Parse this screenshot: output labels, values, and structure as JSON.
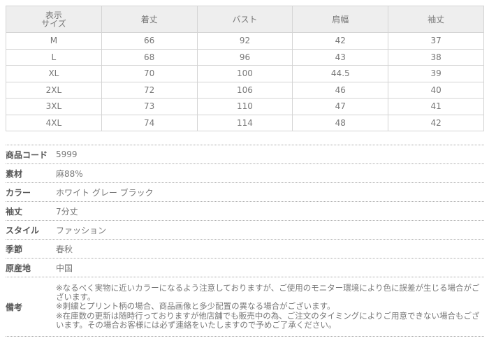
{
  "size_table": {
    "headers": [
      "表示\nサイズ",
      "着丈",
      "バスト",
      "肩幅",
      "袖丈"
    ],
    "rows": [
      [
        "M",
        "66",
        "92",
        "42",
        "37"
      ],
      [
        "L",
        "68",
        "96",
        "43",
        "38"
      ],
      [
        "XL",
        "70",
        "100",
        "44.5",
        "39"
      ],
      [
        "2XL",
        "72",
        "106",
        "46",
        "40"
      ],
      [
        "3XL",
        "73",
        "110",
        "47",
        "41"
      ],
      [
        "4XL",
        "74",
        "114",
        "48",
        "42"
      ]
    ]
  },
  "specs": [
    {
      "label": "商品コード",
      "value": "5999"
    },
    {
      "label": "素材",
      "value": "麻88%"
    },
    {
      "label": "カラー",
      "value": "ホワイト グレー ブラック"
    },
    {
      "label": "袖丈",
      "value": "7分丈"
    },
    {
      "label": "スタイル",
      "value": "ファッション"
    },
    {
      "label": "季節",
      "value": "春秋"
    },
    {
      "label": "原産地",
      "value": "中国"
    }
  ],
  "notes": {
    "label": "備考",
    "lines": [
      "※なるべく実物に近いカラーになるよう注意しておりますが、ご使用のモニター環境により色に誤差が生じる場合がございます。",
      "※刺繍とプリント柄の場合、商品画像と多少配置の異なる場合がございます。",
      "※在庫数の更新は随時行っておりますが他店舗でも販売中の為、ご注文のタイミングによりご用意できない場合もございます。その場合お客様には必ず連絡をいたしますので予めご了承ください。"
    ]
  }
}
